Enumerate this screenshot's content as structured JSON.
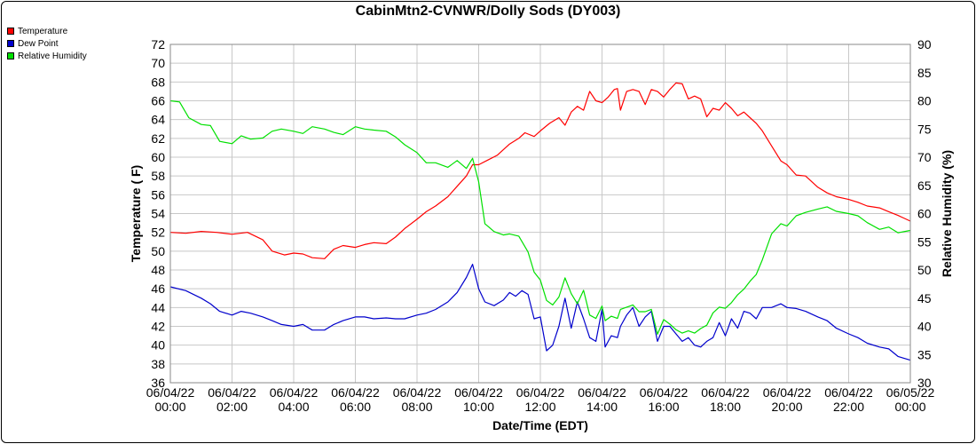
{
  "chart_data": {
    "type": "line",
    "title": "CabinMtn2-CVNWR/Dolly Sods (DY003)",
    "xlabel": "Date/Time (EDT)",
    "ylabel": "Temperature ( F)",
    "y2label": "Relative Humidity (%)",
    "ylim": [
      36,
      72
    ],
    "y2lim": [
      30,
      90
    ],
    "yticks": [
      36,
      38,
      40,
      42,
      44,
      46,
      48,
      50,
      52,
      54,
      56,
      58,
      60,
      62,
      64,
      66,
      68,
      70,
      72
    ],
    "y2ticks": [
      30,
      35,
      40,
      45,
      50,
      55,
      60,
      65,
      70,
      75,
      80,
      85,
      90
    ],
    "xlim": [
      0,
      24
    ],
    "xticks": [
      {
        "date": "06/04/22",
        "time": "00:00"
      },
      {
        "date": "06/04/22",
        "time": "02:00"
      },
      {
        "date": "06/04/22",
        "time": "04:00"
      },
      {
        "date": "06/04/22",
        "time": "06:00"
      },
      {
        "date": "06/04/22",
        "time": "08:00"
      },
      {
        "date": "06/04/22",
        "time": "10:00"
      },
      {
        "date": "06/04/22",
        "time": "12:00"
      },
      {
        "date": "06/04/22",
        "time": "14:00"
      },
      {
        "date": "06/04/22",
        "time": "16:00"
      },
      {
        "date": "06/04/22",
        "time": "18:00"
      },
      {
        "date": "06/04/22",
        "time": "20:00"
      },
      {
        "date": "06/04/22",
        "time": "22:00"
      },
      {
        "date": "06/05/22",
        "time": "00:00"
      }
    ],
    "grid": true,
    "legend_position": "top-left",
    "series": [
      {
        "name": "Temperature",
        "color": "#ff0000",
        "axis": "left",
        "points": [
          [
            0,
            52.0
          ],
          [
            0.5,
            51.9
          ],
          [
            1,
            52.1
          ],
          [
            1.5,
            52.0
          ],
          [
            2,
            51.8
          ],
          [
            2.5,
            52.0
          ],
          [
            3,
            51.2
          ],
          [
            3.3,
            50.0
          ],
          [
            3.7,
            49.6
          ],
          [
            4,
            49.8
          ],
          [
            4.3,
            49.7
          ],
          [
            4.6,
            49.3
          ],
          [
            5,
            49.2
          ],
          [
            5.3,
            50.2
          ],
          [
            5.6,
            50.6
          ],
          [
            6,
            50.4
          ],
          [
            6.3,
            50.7
          ],
          [
            6.6,
            50.9
          ],
          [
            7,
            50.8
          ],
          [
            7.3,
            51.5
          ],
          [
            7.6,
            52.4
          ],
          [
            8,
            53.4
          ],
          [
            8.3,
            54.2
          ],
          [
            8.6,
            54.8
          ],
          [
            9,
            55.8
          ],
          [
            9.3,
            56.9
          ],
          [
            9.6,
            58.0
          ],
          [
            9.8,
            59.2
          ],
          [
            10,
            59.2
          ],
          [
            10.3,
            59.7
          ],
          [
            10.6,
            60.2
          ],
          [
            11,
            61.4
          ],
          [
            11.3,
            62.0
          ],
          [
            11.5,
            62.6
          ],
          [
            11.8,
            62.2
          ],
          [
            12,
            62.8
          ],
          [
            12.3,
            63.6
          ],
          [
            12.6,
            64.2
          ],
          [
            12.8,
            63.4
          ],
          [
            13.0,
            64.8
          ],
          [
            13.2,
            65.4
          ],
          [
            13.4,
            65.0
          ],
          [
            13.6,
            67.0
          ],
          [
            13.8,
            66.0
          ],
          [
            14.0,
            65.8
          ],
          [
            14.2,
            66.4
          ],
          [
            14.4,
            67.2
          ],
          [
            14.5,
            67.3
          ],
          [
            14.6,
            65.0
          ],
          [
            14.8,
            67.0
          ],
          [
            15.0,
            67.2
          ],
          [
            15.2,
            67.0
          ],
          [
            15.4,
            65.6
          ],
          [
            15.6,
            67.2
          ],
          [
            15.8,
            67.0
          ],
          [
            16.0,
            66.4
          ],
          [
            16.2,
            67.2
          ],
          [
            16.4,
            67.9
          ],
          [
            16.6,
            67.8
          ],
          [
            16.8,
            66.2
          ],
          [
            17.0,
            66.5
          ],
          [
            17.2,
            66.2
          ],
          [
            17.4,
            64.3
          ],
          [
            17.6,
            65.2
          ],
          [
            17.8,
            65.0
          ],
          [
            18.0,
            65.8
          ],
          [
            18.2,
            65.2
          ],
          [
            18.4,
            64.4
          ],
          [
            18.6,
            64.8
          ],
          [
            18.8,
            64.2
          ],
          [
            19.0,
            63.6
          ],
          [
            19.2,
            62.8
          ],
          [
            19.5,
            61.2
          ],
          [
            19.8,
            59.6
          ],
          [
            20.0,
            59.2
          ],
          [
            20.3,
            58.1
          ],
          [
            20.6,
            58.0
          ],
          [
            21.0,
            56.8
          ],
          [
            21.3,
            56.2
          ],
          [
            21.6,
            55.8
          ],
          [
            22.0,
            55.5
          ],
          [
            22.3,
            55.2
          ],
          [
            22.6,
            54.8
          ],
          [
            23.0,
            54.6
          ],
          [
            23.3,
            54.2
          ],
          [
            23.6,
            53.8
          ],
          [
            24.0,
            53.2
          ]
        ]
      },
      {
        "name": "Dew Point",
        "color": "#0000cc",
        "axis": "left",
        "points": [
          [
            0,
            46.2
          ],
          [
            0.5,
            45.8
          ],
          [
            1,
            45.0
          ],
          [
            1.3,
            44.4
          ],
          [
            1.6,
            43.6
          ],
          [
            2,
            43.2
          ],
          [
            2.3,
            43.6
          ],
          [
            2.6,
            43.4
          ],
          [
            3,
            43.0
          ],
          [
            3.3,
            42.6
          ],
          [
            3.6,
            42.2
          ],
          [
            4,
            42.0
          ],
          [
            4.3,
            42.2
          ],
          [
            4.6,
            41.6
          ],
          [
            5,
            41.6
          ],
          [
            5.3,
            42.2
          ],
          [
            5.6,
            42.6
          ],
          [
            6,
            43.0
          ],
          [
            6.3,
            43.0
          ],
          [
            6.6,
            42.8
          ],
          [
            7,
            42.9
          ],
          [
            7.3,
            42.8
          ],
          [
            7.6,
            42.8
          ],
          [
            8,
            43.2
          ],
          [
            8.3,
            43.4
          ],
          [
            8.6,
            43.8
          ],
          [
            9,
            44.6
          ],
          [
            9.3,
            45.6
          ],
          [
            9.6,
            47.2
          ],
          [
            9.8,
            48.6
          ],
          [
            10,
            46.0
          ],
          [
            10.2,
            44.6
          ],
          [
            10.5,
            44.2
          ],
          [
            10.8,
            44.8
          ],
          [
            11,
            45.6
          ],
          [
            11.2,
            45.2
          ],
          [
            11.4,
            45.8
          ],
          [
            11.6,
            45.4
          ],
          [
            11.8,
            42.8
          ],
          [
            12,
            43.0
          ],
          [
            12.2,
            39.4
          ],
          [
            12.4,
            40.0
          ],
          [
            12.6,
            42.0
          ],
          [
            12.8,
            45.0
          ],
          [
            13.0,
            41.8
          ],
          [
            13.2,
            44.6
          ],
          [
            13.4,
            42.8
          ],
          [
            13.6,
            40.8
          ],
          [
            13.8,
            40.4
          ],
          [
            14.0,
            43.8
          ],
          [
            14.1,
            39.8
          ],
          [
            14.3,
            41.0
          ],
          [
            14.5,
            40.8
          ],
          [
            14.6,
            42.0
          ],
          [
            14.8,
            43.2
          ],
          [
            15.0,
            44.0
          ],
          [
            15.2,
            42.0
          ],
          [
            15.4,
            43.0
          ],
          [
            15.6,
            43.6
          ],
          [
            15.8,
            40.4
          ],
          [
            16.0,
            42.0
          ],
          [
            16.2,
            42.0
          ],
          [
            16.4,
            41.2
          ],
          [
            16.6,
            40.4
          ],
          [
            16.8,
            40.8
          ],
          [
            17.0,
            40.0
          ],
          [
            17.2,
            39.8
          ],
          [
            17.4,
            40.4
          ],
          [
            17.6,
            40.8
          ],
          [
            17.8,
            42.4
          ],
          [
            18.0,
            41.0
          ],
          [
            18.2,
            42.8
          ],
          [
            18.4,
            41.8
          ],
          [
            18.6,
            43.6
          ],
          [
            18.8,
            43.4
          ],
          [
            19.0,
            42.8
          ],
          [
            19.2,
            44.0
          ],
          [
            19.5,
            44.0
          ],
          [
            19.8,
            44.4
          ],
          [
            20.0,
            44.0
          ],
          [
            20.3,
            43.9
          ],
          [
            20.6,
            43.6
          ],
          [
            21,
            43.0
          ],
          [
            21.3,
            42.6
          ],
          [
            21.6,
            41.8
          ],
          [
            22,
            41.2
          ],
          [
            22.3,
            40.8
          ],
          [
            22.6,
            40.2
          ],
          [
            23,
            39.8
          ],
          [
            23.3,
            39.6
          ],
          [
            23.6,
            38.8
          ],
          [
            24,
            38.4
          ]
        ]
      },
      {
        "name": "Relative Humidity",
        "color": "#00e000",
        "axis": "right",
        "points": [
          [
            0,
            80.0
          ],
          [
            0.3,
            79.8
          ],
          [
            0.6,
            77.0
          ],
          [
            1,
            75.8
          ],
          [
            1.3,
            75.6
          ],
          [
            1.6,
            72.8
          ],
          [
            2,
            72.4
          ],
          [
            2.3,
            73.8
          ],
          [
            2.6,
            73.2
          ],
          [
            3,
            73.4
          ],
          [
            3.3,
            74.6
          ],
          [
            3.6,
            75.0
          ],
          [
            4,
            74.6
          ],
          [
            4.3,
            74.2
          ],
          [
            4.6,
            75.4
          ],
          [
            5,
            75.0
          ],
          [
            5.3,
            74.4
          ],
          [
            5.6,
            74.0
          ],
          [
            6,
            75.4
          ],
          [
            6.3,
            75.0
          ],
          [
            6.6,
            74.8
          ],
          [
            7,
            74.6
          ],
          [
            7.3,
            73.6
          ],
          [
            7.6,
            72.2
          ],
          [
            8,
            70.8
          ],
          [
            8.3,
            69.0
          ],
          [
            8.6,
            69.0
          ],
          [
            9,
            68.2
          ],
          [
            9.3,
            69.4
          ],
          [
            9.6,
            68.0
          ],
          [
            9.8,
            69.8
          ],
          [
            10,
            65.6
          ],
          [
            10.2,
            58.2
          ],
          [
            10.5,
            56.8
          ],
          [
            10.8,
            56.2
          ],
          [
            11,
            56.4
          ],
          [
            11.3,
            56.0
          ],
          [
            11.6,
            53.2
          ],
          [
            11.8,
            49.6
          ],
          [
            12,
            48.2
          ],
          [
            12.2,
            44.6
          ],
          [
            12.4,
            43.8
          ],
          [
            12.6,
            45.2
          ],
          [
            12.8,
            48.6
          ],
          [
            13.0,
            45.8
          ],
          [
            13.2,
            44.0
          ],
          [
            13.4,
            46.4
          ],
          [
            13.6,
            42.0
          ],
          [
            13.8,
            41.4
          ],
          [
            14.0,
            43.6
          ],
          [
            14.1,
            41.0
          ],
          [
            14.3,
            41.8
          ],
          [
            14.5,
            41.4
          ],
          [
            14.6,
            43.0
          ],
          [
            14.8,
            43.4
          ],
          [
            15.0,
            43.8
          ],
          [
            15.2,
            42.6
          ],
          [
            15.4,
            42.6
          ],
          [
            15.6,
            43.0
          ],
          [
            15.8,
            38.6
          ],
          [
            16.0,
            41.2
          ],
          [
            16.2,
            40.4
          ],
          [
            16.4,
            39.4
          ],
          [
            16.6,
            38.8
          ],
          [
            16.8,
            39.2
          ],
          [
            17.0,
            38.8
          ],
          [
            17.2,
            39.6
          ],
          [
            17.4,
            40.2
          ],
          [
            17.6,
            42.4
          ],
          [
            17.8,
            43.4
          ],
          [
            18.0,
            43.2
          ],
          [
            18.2,
            44.2
          ],
          [
            18.4,
            45.6
          ],
          [
            18.6,
            46.6
          ],
          [
            18.8,
            48.0
          ],
          [
            19.0,
            49.2
          ],
          [
            19.2,
            51.8
          ],
          [
            19.5,
            56.4
          ],
          [
            19.8,
            58.2
          ],
          [
            20.0,
            57.8
          ],
          [
            20.3,
            59.6
          ],
          [
            20.6,
            60.2
          ],
          [
            21,
            60.8
          ],
          [
            21.3,
            61.2
          ],
          [
            21.6,
            60.4
          ],
          [
            22,
            60.0
          ],
          [
            22.3,
            59.6
          ],
          [
            22.6,
            58.4
          ],
          [
            23,
            57.2
          ],
          [
            23.3,
            57.6
          ],
          [
            23.6,
            56.6
          ],
          [
            24,
            57.0
          ]
        ]
      }
    ]
  }
}
